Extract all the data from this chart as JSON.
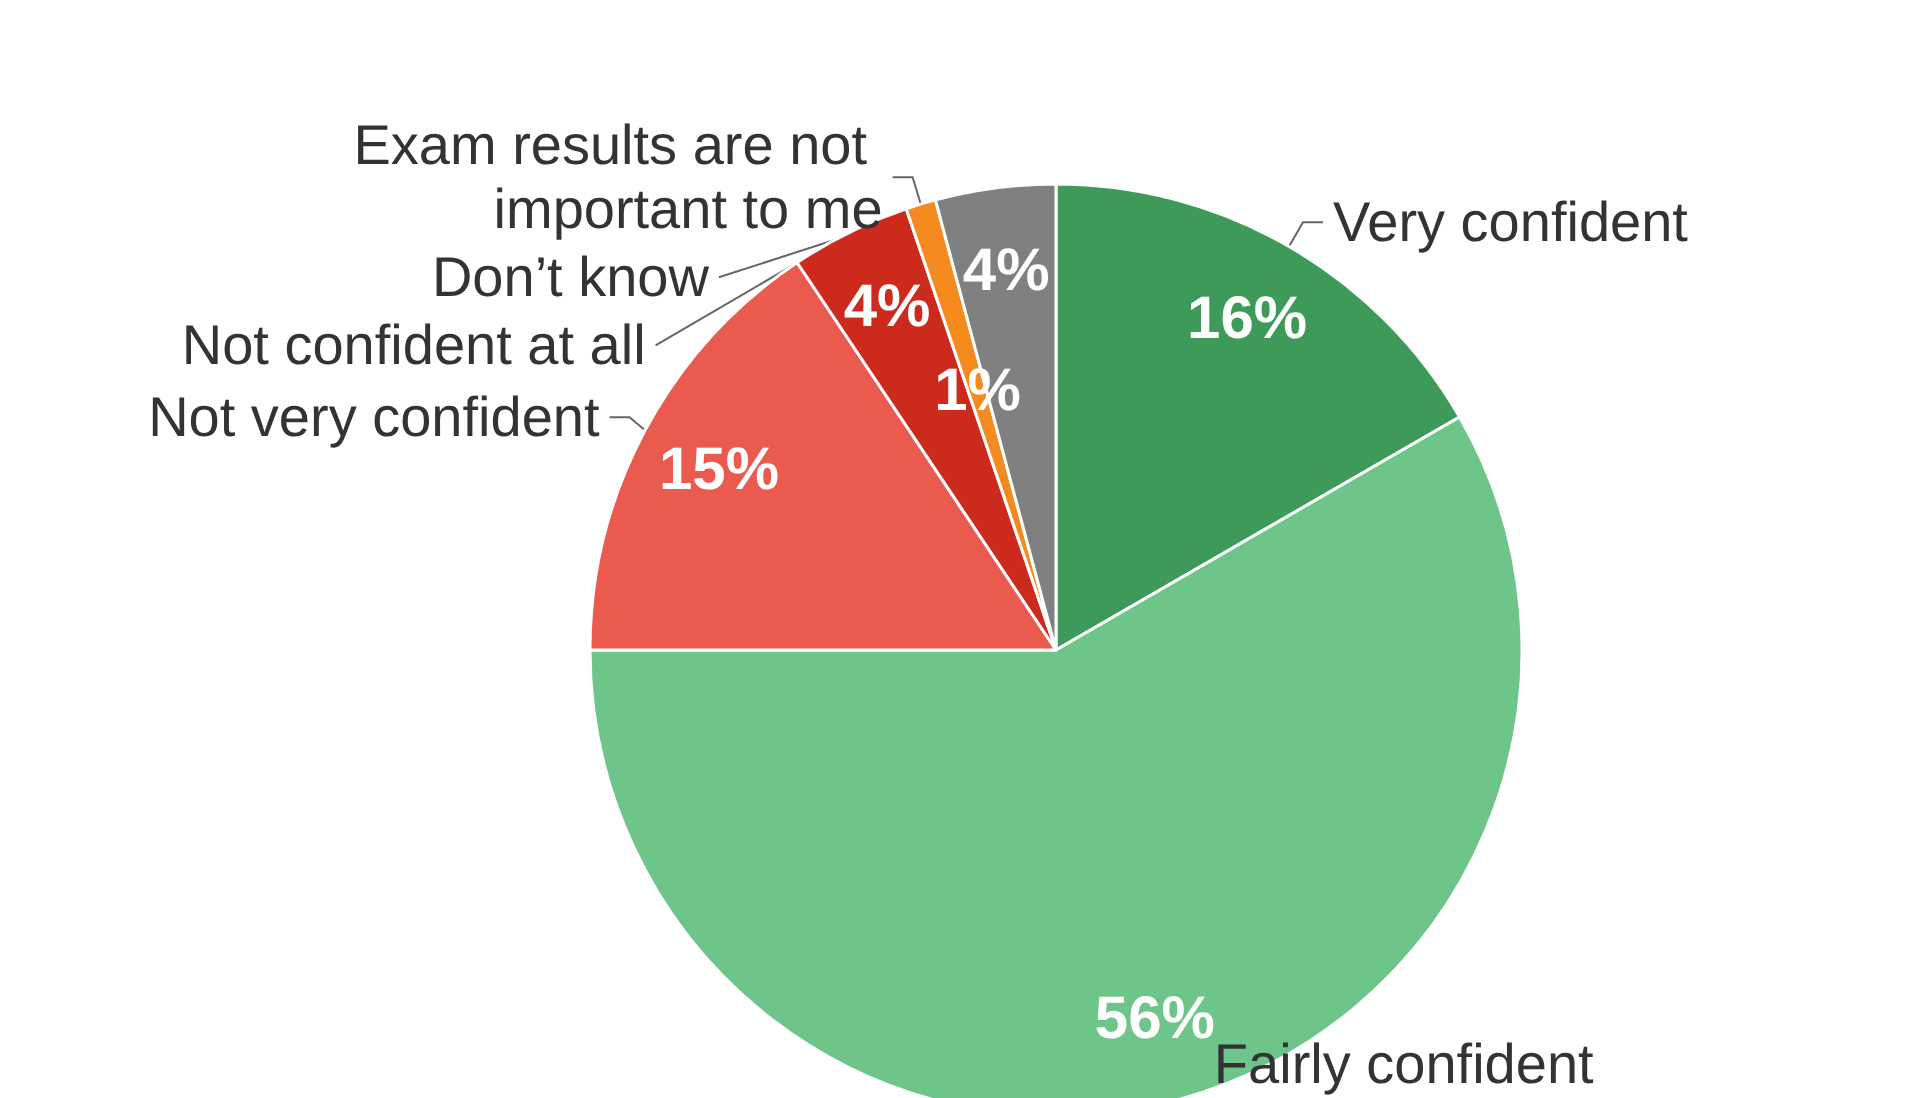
{
  "chart_data": {
    "type": "pie",
    "categories": [
      "Very confident",
      "Fairly confident",
      "Not very confident",
      "Not confident at all",
      "Exam results are not important to me",
      "Don’t know"
    ],
    "values": [
      16,
      56,
      15,
      4,
      1,
      4
    ],
    "value_labels": [
      "16%",
      "56%",
      "15%",
      "4%",
      "1%",
      "4%"
    ],
    "colors": [
      "#3d9a58",
      "#6dc589",
      "#eb5a4e",
      "#cc2a1d",
      "#f58a1f",
      "#808080"
    ],
    "legend": false
  }
}
